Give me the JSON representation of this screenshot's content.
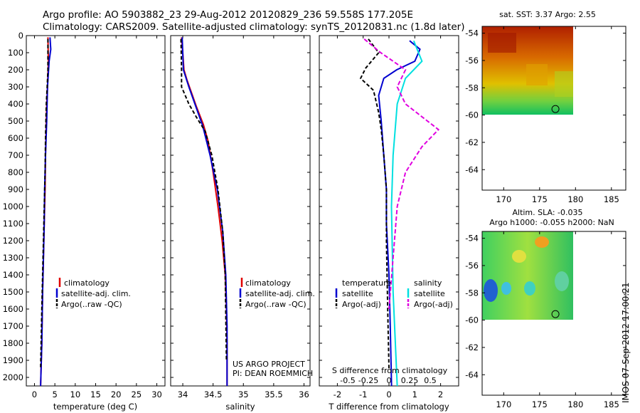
{
  "title_line1": "Argo profile: AO 5903882_23 29-Aug-2012 20120829_236 59.558S 177.205E",
  "title_line2": "Climatology: CARS2009. Satellite-adjusted climatology: synTS_20120831.nc (1.8d later)",
  "side_label": "IMOS 07-Sep-2012 17:00:21",
  "colors": {
    "climatology": "#e00000",
    "satellite": "#0000d0",
    "argo": "#000000",
    "salinity_sat": "#00e0e0",
    "salinity_argo": "#e000e0"
  },
  "chart_data": [
    {
      "type": "line",
      "id": "temperature",
      "xlabel": "temperature (deg C)",
      "xlim": [
        -2,
        32
      ],
      "ylim": [
        2050,
        0
      ],
      "xticks": [
        0,
        5,
        10,
        15,
        20,
        25,
        30
      ],
      "yticks": [
        0,
        100,
        200,
        300,
        400,
        500,
        600,
        700,
        800,
        900,
        1000,
        1100,
        1200,
        1300,
        1400,
        1500,
        1600,
        1700,
        1800,
        1900,
        2000
      ],
      "legend": [
        "climatology",
        "satellite-adj. clim.",
        "Argo(..raw -QC)"
      ],
      "series": [
        {
          "name": "climatology",
          "x": [
            3.3,
            3.4,
            3.2,
            3.0,
            2.9,
            2.7,
            2.6,
            2.4,
            2.2,
            2.0,
            1.8,
            1.5
          ],
          "y": [
            10,
            150,
            300,
            400,
            500,
            700,
            900,
            1100,
            1300,
            1500,
            1800,
            2050
          ]
        },
        {
          "name": "satellite-adj. clim.",
          "x": [
            3.8,
            4.0,
            3.6,
            3.2,
            3.0,
            2.7,
            2.5,
            2.4,
            2.2,
            2.0,
            1.8,
            1.5
          ],
          "y": [
            10,
            80,
            150,
            300,
            500,
            700,
            900,
            1100,
            1300,
            1500,
            1800,
            2050
          ]
        },
        {
          "name": "Argo(..raw -QC)",
          "x": [
            3.3,
            3.3,
            3.1,
            2.9,
            2.7,
            2.6,
            2.4,
            2.2,
            2.0,
            1.8,
            1.5
          ],
          "y": [
            20,
            200,
            300,
            400,
            600,
            800,
            1000,
            1200,
            1400,
            1600,
            1950
          ]
        }
      ]
    },
    {
      "type": "line",
      "id": "salinity",
      "xlabel": "salinity",
      "xlim": [
        33.8,
        36.1
      ],
      "ylim": [
        2050,
        0
      ],
      "xticks": [
        34,
        34.5,
        35,
        35.5,
        36
      ],
      "legend": [
        "climatology",
        "satellite-adj. clim.",
        "Argo(..raw -QC)"
      ],
      "annotation": [
        "US ARGO PROJECT",
        "PI: DEAN ROEMMICH"
      ],
      "series": [
        {
          "name": "climatology",
          "x": [
            33.98,
            34.0,
            34.02,
            34.07,
            34.13,
            34.23,
            34.34,
            34.42,
            34.5,
            34.58,
            34.65,
            34.7,
            34.72,
            34.73,
            34.73
          ],
          "y": [
            10,
            100,
            200,
            260,
            320,
            420,
            520,
            620,
            800,
            1000,
            1200,
            1400,
            1600,
            1800,
            2050
          ]
        },
        {
          "name": "satellite-adj. clim.",
          "x": [
            33.99,
            34.0,
            34.01,
            34.1,
            34.2,
            34.33,
            34.45,
            34.57,
            34.66,
            34.71,
            34.73,
            34.73
          ],
          "y": [
            10,
            100,
            200,
            300,
            400,
            530,
            700,
            900,
            1150,
            1400,
            1700,
            2050
          ]
        },
        {
          "name": "Argo(..raw -QC)",
          "x": [
            33.97,
            33.98,
            33.98,
            34.1,
            34.23,
            34.37,
            34.48,
            34.58,
            34.66,
            34.7,
            34.72
          ],
          "y": [
            20,
            200,
            300,
            400,
            480,
            560,
            700,
            900,
            1150,
            1400,
            1900
          ]
        }
      ]
    },
    {
      "type": "line",
      "id": "difference",
      "xlabel": "T difference from climatology",
      "xlabel_top": "S difference from climatology",
      "xlim": [
        -2.7,
        2.7
      ],
      "ylim": [
        2050,
        0
      ],
      "xticks": [
        -2,
        -1,
        0,
        1,
        2
      ],
      "xticks_top": [
        -0.5,
        -0.25,
        0,
        0.25,
        0.5
      ],
      "legend_title_left": "temperature",
      "legend_title_right": "salinity",
      "legend_left": [
        "satellite",
        "Argo(-adj)"
      ],
      "legend_right": [
        "satellite",
        "Argo(-adj)"
      ],
      "series": [
        {
          "name": "T satellite",
          "x": [
            0.8,
            1.2,
            1.0,
            0.3,
            -0.2,
            -0.4,
            -0.3,
            -0.2,
            -0.1,
            -0.1,
            0,
            0.05,
            0.1
          ],
          "y": [
            30,
            80,
            150,
            200,
            250,
            350,
            500,
            700,
            900,
            1100,
            1400,
            1700,
            2050
          ]
        },
        {
          "name": "T Argo(-adj)",
          "x": [
            -0.8,
            -0.4,
            -0.9,
            -1.1,
            -0.6,
            -0.4,
            -0.3,
            -0.2,
            -0.1,
            -0.1,
            -0.05,
            0
          ],
          "y": [
            20,
            100,
            190,
            250,
            320,
            450,
            550,
            700,
            900,
            1200,
            1600,
            1950
          ]
        },
        {
          "name": "S satellite",
          "x": [
            0.3,
            0.4,
            0.2,
            0.1,
            0.05,
            0.03,
            0.05,
            0.1
          ],
          "y": [
            30,
            150,
            250,
            400,
            700,
            1000,
            1500,
            2050
          ]
        },
        {
          "name": "S Argo(-adj)",
          "x": [
            -0.3,
            -0.1,
            0.2,
            0.1,
            0.2,
            0.6,
            0.4,
            0.2,
            0.1,
            0.05,
            0
          ],
          "y": [
            20,
            100,
            200,
            300,
            400,
            550,
            650,
            800,
            1000,
            1300,
            1600
          ]
        }
      ]
    },
    {
      "type": "heatmap",
      "id": "sst-map",
      "title": "sat. SST: 3.37 Argo: 2.55",
      "xlim": [
        167,
        187
      ],
      "ylim": [
        -65.5,
        -53.5
      ],
      "xticks": [
        170,
        175,
        180,
        185
      ],
      "yticks": [
        -54,
        -56,
        -58,
        -60,
        -62,
        -64
      ],
      "marker": {
        "lon": 177.205,
        "lat": -59.558
      }
    },
    {
      "type": "heatmap",
      "id": "sla-map",
      "title": "Altim. SLA: -0.035",
      "subtitle": "Argo h1000: -0.055 h2000: NaN",
      "xlim": [
        167,
        187
      ],
      "ylim": [
        -65.5,
        -53.5
      ],
      "xticks": [
        170,
        175,
        180,
        185
      ],
      "yticks": [
        -54,
        -56,
        -58,
        -60,
        -62,
        -64
      ],
      "marker": {
        "lon": 177.205,
        "lat": -59.558
      }
    }
  ]
}
